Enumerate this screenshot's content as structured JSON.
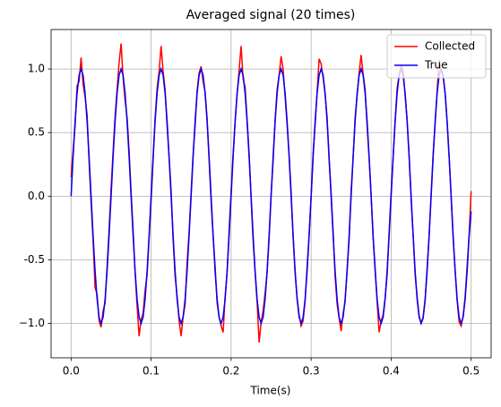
{
  "chart_data": {
    "type": "line",
    "title": "Averaged signal (20 times)",
    "x_label": "Time(s)",
    "x": [
      0,
      0.0025,
      0.005,
      0.0075,
      0.01,
      0.0125,
      0.015,
      0.0175,
      0.02,
      0.0225,
      0.025,
      0.0275,
      0.03,
      0.0325,
      0.035,
      0.0375,
      0.04,
      0.0425,
      0.045,
      0.0475,
      0.05,
      0.0525,
      0.055,
      0.0575,
      0.06,
      0.0625,
      0.065,
      0.0675,
      0.07,
      0.0725,
      0.075,
      0.0775,
      0.08,
      0.0825,
      0.085,
      0.0875,
      0.09,
      0.0925,
      0.095,
      0.0975,
      0.1,
      0.1025,
      0.105,
      0.1075,
      0.11,
      0.1125,
      0.115,
      0.1175,
      0.12,
      0.1225,
      0.125,
      0.1275,
      0.13,
      0.1325,
      0.135,
      0.1375,
      0.14,
      0.1425,
      0.145,
      0.1475,
      0.15,
      0.1525,
      0.155,
      0.1575,
      0.16,
      0.1625,
      0.165,
      0.1675,
      0.17,
      0.1725,
      0.175,
      0.1775,
      0.18,
      0.1825,
      0.185,
      0.1875,
      0.19,
      0.1925,
      0.195,
      0.1975,
      0.2,
      0.2025,
      0.205,
      0.2075,
      0.21,
      0.2125,
      0.215,
      0.2175,
      0.22,
      0.2225,
      0.225,
      0.2275,
      0.23,
      0.2325,
      0.235,
      0.2375,
      0.24,
      0.2425,
      0.245,
      0.2475,
      0.25,
      0.2525,
      0.255,
      0.2575,
      0.26,
      0.2625,
      0.265,
      0.2675,
      0.27,
      0.2725,
      0.275,
      0.2775,
      0.28,
      0.2825,
      0.285,
      0.2875,
      0.29,
      0.2925,
      0.295,
      0.2975,
      0.3,
      0.3025,
      0.305,
      0.3075,
      0.31,
      0.3125,
      0.315,
      0.3175,
      0.32,
      0.3225,
      0.325,
      0.3275,
      0.33,
      0.3325,
      0.335,
      0.3375,
      0.34,
      0.3425,
      0.345,
      0.3475,
      0.35,
      0.3525,
      0.355,
      0.3575,
      0.36,
      0.3625,
      0.365,
      0.3675,
      0.37,
      0.3725,
      0.375,
      0.3775,
      0.38,
      0.3825,
      0.385,
      0.3875,
      0.39,
      0.3925,
      0.395,
      0.3975,
      0.4,
      0.4025,
      0.405,
      0.4075,
      0.41,
      0.4125,
      0.415,
      0.4175,
      0.42,
      0.4225,
      0.425,
      0.4275,
      0.43,
      0.4325,
      0.435,
      0.4375,
      0.44,
      0.4425,
      0.445,
      0.4475,
      0.45,
      0.4525,
      0.455,
      0.4575,
      0.46,
      0.4625,
      0.465,
      0.4675,
      0.47,
      0.4725,
      0.475,
      0.4775,
      0.48,
      0.4825,
      0.485,
      0.4875,
      0.49,
      0.4925,
      0.495,
      0.4975,
      0.5
    ],
    "series": [
      {
        "name": "Collected",
        "color": "#ff0000",
        "values": [
          0.15,
          0.36,
          0.55,
          0.87,
          0.9,
          1.09,
          0.88,
          0.78,
          0.64,
          0.27,
          -0.05,
          -0.35,
          -0.72,
          -0.77,
          -0.98,
          -1.03,
          -0.9,
          -0.84,
          -0.55,
          -0.26,
          0.06,
          0.35,
          0.63,
          0.84,
          1.05,
          1.2,
          0.93,
          0.75,
          0.62,
          0.36,
          0.03,
          -0.26,
          -0.6,
          -0.86,
          -1.1,
          -0.97,
          -0.92,
          -0.74,
          -0.62,
          -0.33,
          -0.04,
          0.28,
          0.61,
          0.85,
          0.98,
          1.18,
          0.98,
          0.84,
          0.55,
          0.31,
          0.05,
          -0.34,
          -0.63,
          -0.78,
          -0.98,
          -1.1,
          -0.95,
          -0.85,
          -0.52,
          -0.28,
          0.03,
          0.33,
          0.55,
          0.83,
          0.97,
          1.02,
          0.9,
          0.82,
          0.61,
          0.28,
          -0.04,
          -0.31,
          -0.55,
          -0.84,
          -0.95,
          -1.02,
          -1.07,
          -0.79,
          -0.6,
          -0.27,
          0.04,
          0.33,
          0.58,
          0.8,
          0.99,
          1.18,
          0.92,
          0.86,
          0.6,
          0.34,
          -0.02,
          -0.35,
          -0.6,
          -0.83,
          -1.15,
          -0.99,
          -0.9,
          -0.76,
          -0.6,
          -0.33,
          0.02,
          0.27,
          0.6,
          0.84,
          0.95,
          1.1,
          1.0,
          0.78,
          0.56,
          0.33,
          0.04,
          -0.32,
          -0.61,
          -0.8,
          -0.93,
          -1.02,
          -0.98,
          -0.82,
          -0.55,
          -0.3,
          -0.01,
          0.34,
          0.56,
          0.82,
          1.08,
          1.04,
          0.93,
          0.8,
          0.62,
          0.28,
          0.03,
          -0.28,
          -0.63,
          -0.85,
          -0.96,
          -1.06,
          -0.92,
          -0.83,
          -0.57,
          -0.35,
          0.05,
          0.3,
          0.62,
          0.79,
          0.97,
          1.11,
          0.96,
          0.84,
          0.55,
          0.3,
          0.01,
          -0.33,
          -0.56,
          -0.83,
          -1.07,
          -0.98,
          -0.93,
          -0.8,
          -0.62,
          -0.28,
          0.03,
          0.3,
          0.59,
          0.85,
          0.95,
          1.03,
          0.99,
          0.79,
          0.6,
          0.32,
          -0.03,
          -0.3,
          -0.62,
          -0.79,
          -0.94,
          -1.0,
          -0.96,
          -0.82,
          -0.56,
          -0.31,
          0.02,
          0.33,
          0.57,
          0.83,
          1.07,
          0.99,
          0.94,
          0.81,
          0.58,
          0.31,
          0.0,
          -0.33,
          -0.58,
          -0.82,
          -0.99,
          -1.02,
          -0.94,
          -0.79,
          -0.55,
          -0.3,
          0.04
        ]
      },
      {
        "name": "True",
        "color": "#0000ff",
        "values": [
          0,
          0.309,
          0.588,
          0.809,
          0.951,
          1,
          0.951,
          0.809,
          0.588,
          0.309,
          0,
          -0.309,
          -0.588,
          -0.809,
          -0.951,
          -1,
          -0.951,
          -0.809,
          -0.588,
          -0.309,
          0,
          0.309,
          0.588,
          0.809,
          0.951,
          1,
          0.951,
          0.809,
          0.588,
          0.309,
          0,
          -0.309,
          -0.588,
          -0.809,
          -0.951,
          -1,
          -0.951,
          -0.809,
          -0.588,
          -0.309,
          0,
          0.309,
          0.588,
          0.809,
          0.951,
          1,
          0.951,
          0.809,
          0.588,
          0.309,
          0,
          -0.309,
          -0.588,
          -0.809,
          -0.951,
          -1,
          -0.951,
          -0.809,
          -0.588,
          -0.309,
          0,
          0.309,
          0.588,
          0.809,
          0.951,
          1,
          0.951,
          0.809,
          0.588,
          0.309,
          0,
          -0.309,
          -0.588,
          -0.809,
          -0.951,
          -1,
          -0.951,
          -0.809,
          -0.588,
          -0.309,
          0,
          0.309,
          0.588,
          0.809,
          0.951,
          1,
          0.951,
          0.809,
          0.588,
          0.309,
          0,
          -0.309,
          -0.588,
          -0.809,
          -0.951,
          -1,
          -0.951,
          -0.809,
          -0.588,
          -0.309,
          0,
          0.309,
          0.588,
          0.809,
          0.951,
          1,
          0.951,
          0.809,
          0.588,
          0.309,
          0,
          -0.309,
          -0.588,
          -0.809,
          -0.951,
          -1,
          -0.951,
          -0.809,
          -0.588,
          -0.309,
          0,
          0.309,
          0.588,
          0.809,
          0.951,
          1,
          0.951,
          0.809,
          0.588,
          0.309,
          0,
          -0.309,
          -0.588,
          -0.809,
          -0.951,
          -1,
          -0.951,
          -0.809,
          -0.588,
          -0.309,
          0,
          0.309,
          0.588,
          0.809,
          0.951,
          1,
          0.951,
          0.809,
          0.588,
          0.309,
          0,
          -0.309,
          -0.588,
          -0.809,
          -0.951,
          -1,
          -0.951,
          -0.809,
          -0.588,
          -0.309,
          0,
          0.309,
          0.588,
          0.809,
          0.951,
          1,
          0.951,
          0.809,
          0.588,
          0.309,
          0,
          -0.309,
          -0.588,
          -0.809,
          -0.951,
          -1,
          -0.951,
          -0.809,
          -0.588,
          -0.309,
          0,
          0.309,
          0.588,
          0.809,
          0.951,
          1,
          0.951,
          0.809,
          0.588,
          0.309,
          0,
          -0.309,
          -0.588,
          -0.809,
          -0.951,
          -1,
          -0.951,
          -0.809,
          -0.588,
          -0.309,
          -0.12
        ]
      }
    ],
    "xlim": [
      -0.025,
      0.525
    ],
    "xticks": [
      {
        "value": 0,
        "label": "0.0"
      },
      0.1,
      0.2,
      0.3,
      0.4,
      0.5
    ],
    "ylim": [
      -1.27,
      1.31
    ],
    "yticks": [
      {
        "value": -1,
        "label": "−1.0"
      },
      -0.5,
      {
        "value": 0,
        "label": "0.0"
      },
      0.5,
      {
        "value": 1,
        "label": "1.0"
      }
    ],
    "grid": true,
    "legend": "upper right"
  }
}
